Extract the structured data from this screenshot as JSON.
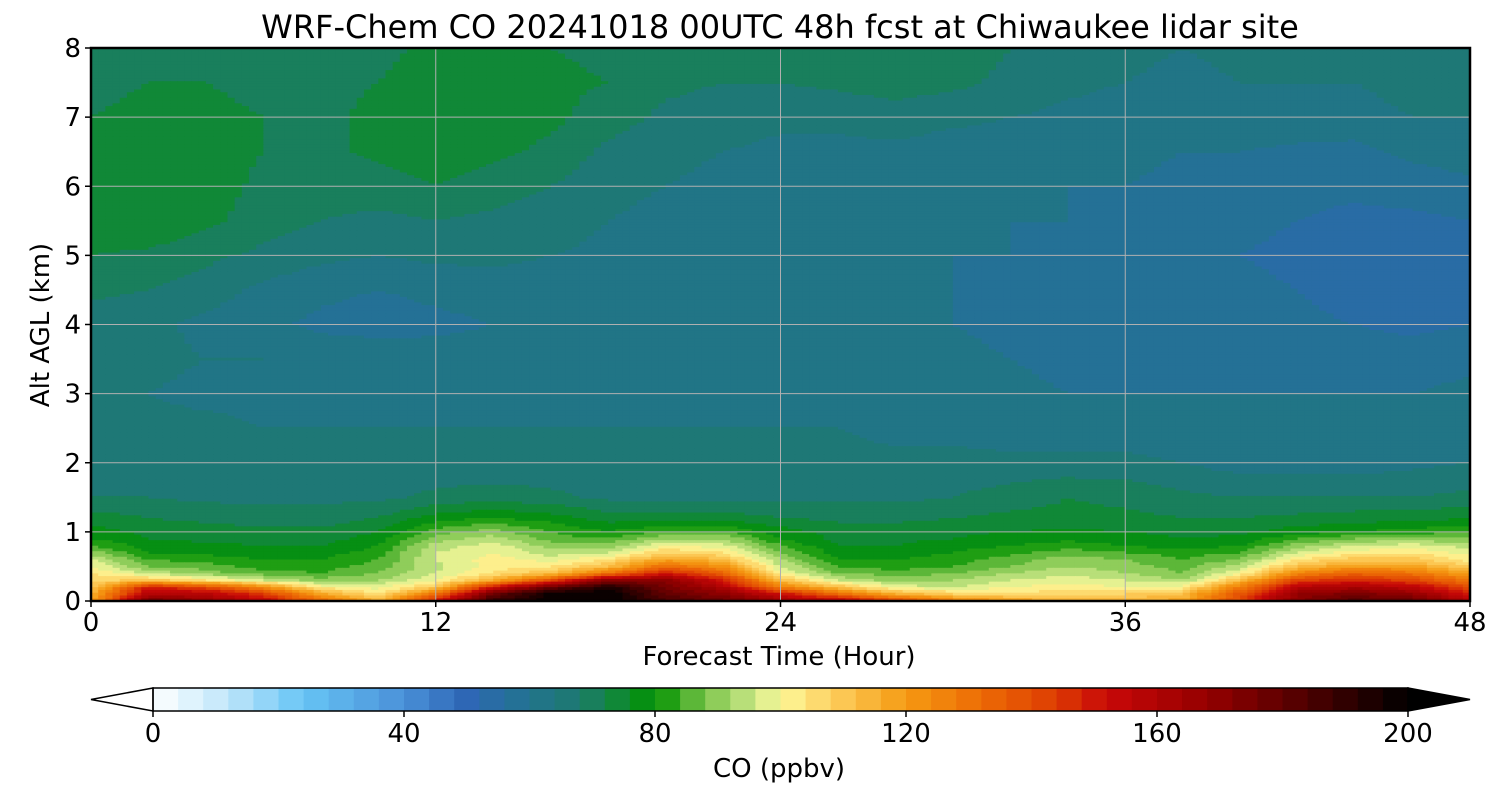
{
  "chart_data": {
    "type": "heatmap",
    "title": "WRF-Chem CO  20241018 00UTC 48h fcst at Chiwaukee lidar site",
    "xlabel": "Forecast Time (Hour)",
    "ylabel": "Alt AGL (km)",
    "xlim": [
      0,
      48
    ],
    "ylim": [
      0,
      8
    ],
    "x_ticks": [
      0,
      12,
      24,
      36,
      48
    ],
    "y_ticks": [
      0,
      1,
      2,
      3,
      4,
      5,
      6,
      7,
      8
    ],
    "grid": true,
    "x_hours": [
      0,
      2,
      4,
      6,
      8,
      10,
      12,
      14,
      16,
      18,
      20,
      22,
      24,
      26,
      28,
      30,
      32,
      34,
      36,
      38,
      40,
      42,
      44,
      46,
      48
    ],
    "alt_km": [
      0.0,
      0.1,
      0.2,
      0.3,
      0.4,
      0.5,
      0.6,
      0.7,
      0.8,
      0.9,
      1.0,
      1.2,
      1.5,
      2.0,
      2.5,
      3.0,
      3.5,
      4.0,
      4.5,
      5.0,
      5.5,
      6.0,
      6.5,
      7.0,
      7.5,
      8.0
    ],
    "co_ppbv": [
      [
        118,
        178,
        168,
        156,
        132,
        116,
        150,
        190,
        200,
        200,
        185,
        178,
        165,
        160,
        142,
        128,
        120,
        116,
        114,
        118,
        142,
        172,
        182,
        178,
        160
      ],
      [
        114,
        160,
        158,
        144,
        118,
        104,
        130,
        178,
        198,
        200,
        180,
        170,
        152,
        132,
        116,
        108,
        106,
        106,
        108,
        112,
        138,
        168,
        175,
        168,
        150
      ],
      [
        110,
        150,
        140,
        124,
        102,
        98,
        110,
        152,
        178,
        195,
        175,
        160,
        128,
        112,
        98,
        96,
        100,
        102,
        100,
        102,
        128,
        158,
        162,
        156,
        140
      ],
      [
        106,
        110,
        104,
        96,
        90,
        92,
        100,
        116,
        140,
        170,
        170,
        150,
        112,
        96,
        90,
        92,
        96,
        98,
        96,
        92,
        112,
        142,
        148,
        142,
        128
      ],
      [
        104,
        95,
        90,
        86,
        84,
        88,
        96,
        104,
        112,
        130,
        150,
        135,
        100,
        88,
        86,
        88,
        92,
        95,
        92,
        88,
        100,
        125,
        134,
        130,
        118
      ],
      [
        100,
        88,
        86,
        82,
        82,
        86,
        95,
        102,
        104,
        112,
        132,
        122,
        96,
        84,
        82,
        84,
        88,
        92,
        90,
        86,
        94,
        112,
        120,
        118,
        108
      ],
      [
        96,
        84,
        82,
        80,
        80,
        84,
        96,
        102,
        98,
        104,
        118,
        112,
        92,
        80,
        80,
        82,
        86,
        90,
        88,
        84,
        88,
        104,
        110,
        110,
        102
      ],
      [
        90,
        80,
        79,
        78,
        78,
        82,
        96,
        100,
        94,
        96,
        108,
        104,
        88,
        78,
        78,
        80,
        83,
        86,
        84,
        82,
        84,
        96,
        102,
        104,
        98
      ],
      [
        84,
        78,
        77,
        76,
        76,
        80,
        94,
        98,
        90,
        90,
        100,
        98,
        84,
        76,
        76,
        78,
        80,
        82,
        80,
        78,
        80,
        90,
        96,
        98,
        94
      ],
      [
        80,
        76,
        75,
        74,
        74,
        78,
        90,
        94,
        86,
        84,
        92,
        92,
        80,
        75,
        75,
        76,
        78,
        79,
        78,
        76,
        77,
        84,
        88,
        90,
        88
      ],
      [
        78,
        75,
        74,
        73,
        73,
        76,
        86,
        90,
        84,
        80,
        84,
        84,
        78,
        74,
        74,
        75,
        76,
        77,
        76,
        75,
        75,
        78,
        80,
        82,
        84
      ],
      [
        74,
        72,
        71,
        70,
        70,
        72,
        78,
        80,
        78,
        74,
        74,
        74,
        72,
        71,
        71,
        72,
        73,
        73,
        73,
        72,
        72,
        73,
        74,
        74,
        76
      ],
      [
        68,
        68,
        67,
        67,
        67,
        67,
        69,
        70,
        69,
        67,
        67,
        67,
        67,
        67,
        67,
        68,
        70,
        72,
        71,
        69,
        68,
        68,
        68,
        68,
        69
      ],
      [
        66,
        66,
        65,
        65,
        65,
        65,
        65,
        65,
        65,
        65,
        65,
        65,
        65,
        65,
        65,
        65,
        65,
        65,
        65,
        64,
        62,
        62,
        62,
        63,
        64
      ],
      [
        66,
        65,
        65,
        64,
        64,
        64,
        64,
        64,
        64,
        64,
        64,
        64,
        64,
        64,
        63,
        63,
        62,
        62,
        62,
        61,
        61,
        61,
        61,
        62,
        63
      ],
      [
        64,
        64,
        63,
        63,
        62,
        62,
        62,
        62,
        62,
        62,
        62,
        62,
        62,
        63,
        62,
        62,
        61,
        60,
        60,
        60,
        60,
        60,
        60,
        60,
        61
      ],
      [
        66,
        65,
        64,
        64,
        63,
        63,
        62,
        62,
        62,
        62,
        61,
        61,
        62,
        63,
        62,
        61,
        60,
        59,
        59,
        59,
        59,
        59,
        58,
        58,
        59
      ],
      [
        66,
        65,
        63,
        61,
        59,
        58,
        59,
        60,
        61,
        61,
        61,
        61,
        61,
        62,
        61,
        60,
        59,
        59,
        59,
        58,
        58,
        57,
        56,
        55,
        56
      ],
      [
        69,
        68,
        66,
        63,
        61,
        60,
        61,
        62,
        62,
        62,
        61,
        61,
        61,
        61,
        60,
        60,
        59,
        59,
        58,
        58,
        57,
        56,
        54,
        53,
        54
      ],
      [
        72,
        71,
        69,
        67,
        65,
        64,
        65,
        65,
        64,
        63,
        62,
        62,
        61,
        61,
        60,
        60,
        60,
        59,
        58,
        57,
        56,
        55,
        53,
        53,
        54
      ],
      [
        75,
        76,
        73,
        70,
        68,
        67,
        68,
        67,
        66,
        64,
        63,
        62,
        62,
        61,
        61,
        61,
        60,
        60,
        59,
        58,
        57,
        56,
        55,
        55,
        56
      ],
      [
        75,
        76,
        74,
        71,
        70,
        70,
        72,
        70,
        68,
        65,
        64,
        63,
        62,
        62,
        62,
        61,
        61,
        60,
        60,
        59,
        58,
        57,
        57,
        58,
        59
      ],
      [
        73,
        74,
        74,
        72,
        71,
        73,
        75,
        73,
        71,
        67,
        65,
        64,
        63,
        63,
        63,
        62,
        62,
        61,
        61,
        60,
        60,
        59,
        59,
        61,
        62
      ],
      [
        72,
        73,
        73,
        72,
        71,
        73,
        75,
        74,
        73,
        70,
        67,
        66,
        65,
        65,
        66,
        65,
        64,
        63,
        62,
        62,
        63,
        63,
        62,
        64,
        64
      ],
      [
        71,
        72,
        72,
        71,
        71,
        72,
        74,
        73,
        73,
        72,
        69,
        68,
        68,
        69,
        70,
        69,
        67,
        65,
        64,
        63,
        64,
        64,
        64,
        66,
        66
      ],
      [
        70,
        71,
        71,
        70,
        70,
        71,
        73,
        72,
        72,
        71,
        69,
        69,
        69,
        70,
        71,
        70,
        68,
        66,
        65,
        64,
        65,
        65,
        65,
        66,
        66
      ]
    ],
    "colorbar": {
      "label": "CO  (ppbv)",
      "min": 0,
      "max": 200,
      "ticks": [
        0,
        40,
        80,
        120,
        160,
        200
      ],
      "extend": "both",
      "stops": [
        {
          "v": 0,
          "c": "#ffffff"
        },
        {
          "v": 12,
          "c": "#bfe6fa"
        },
        {
          "v": 24,
          "c": "#66c4f5"
        },
        {
          "v": 40,
          "c": "#4a90d8"
        },
        {
          "v": 50,
          "c": "#2e67b5"
        },
        {
          "v": 60,
          "c": "#22738e"
        },
        {
          "v": 68,
          "c": "#1d7a6e"
        },
        {
          "v": 76,
          "c": "#0c8c25"
        },
        {
          "v": 80,
          "c": "#009100"
        },
        {
          "v": 88,
          "c": "#7bc44a"
        },
        {
          "v": 96,
          "c": "#cce888"
        },
        {
          "v": 100,
          "c": "#fdf99a"
        },
        {
          "v": 108,
          "c": "#fdd060"
        },
        {
          "v": 120,
          "c": "#f59a12"
        },
        {
          "v": 132,
          "c": "#ec6b05"
        },
        {
          "v": 144,
          "c": "#dd3c03"
        },
        {
          "v": 152,
          "c": "#c80808"
        },
        {
          "v": 168,
          "c": "#950000"
        },
        {
          "v": 184,
          "c": "#4d0000"
        },
        {
          "v": 200,
          "c": "#000000"
        }
      ]
    }
  }
}
